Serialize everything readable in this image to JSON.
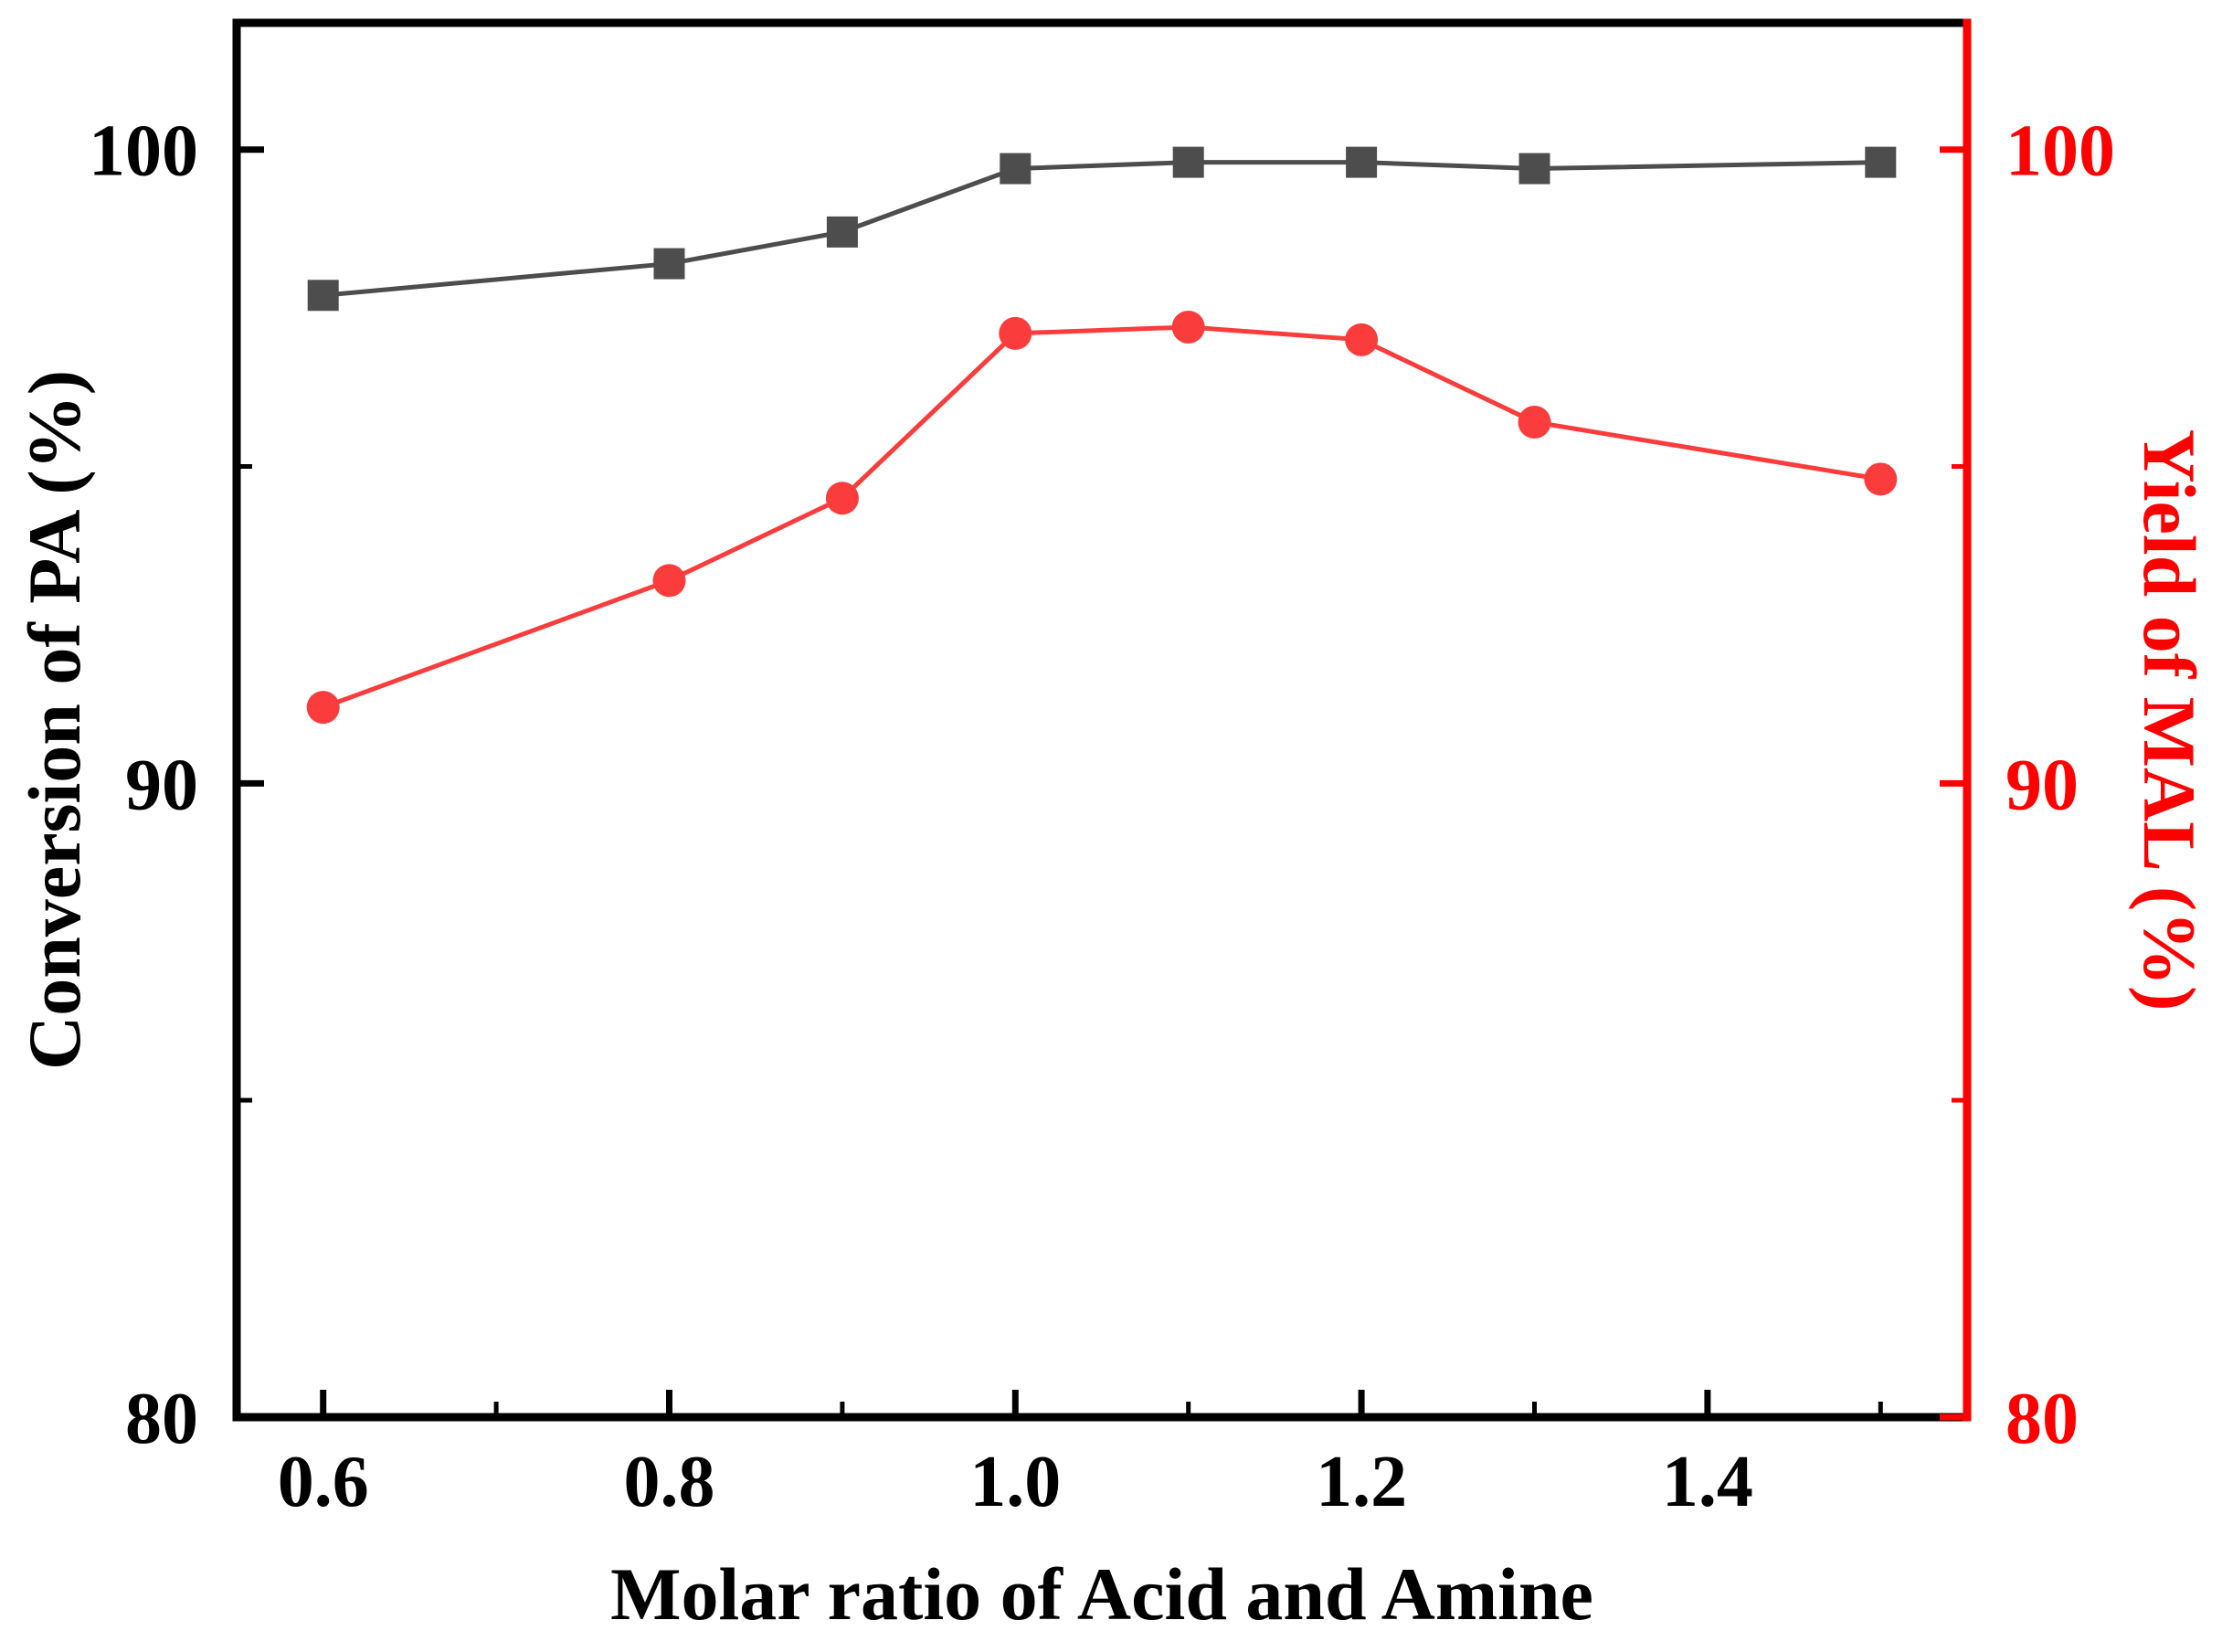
{
  "figure": {
    "background": "#ffffff"
  },
  "chart_data": {
    "type": "line",
    "title": "",
    "xlabel": "Molar ratio of Acid and Amine",
    "ylabel_left": "Conversion of PA (%)",
    "ylabel_right": "Yield of MAL (%)",
    "grid": false,
    "legend": "none",
    "xlim": [
      0.55,
      1.55
    ],
    "ylim_left": [
      80,
      102
    ],
    "ylim_right": [
      80,
      102
    ],
    "x": [
      0.6,
      0.8,
      0.9,
      1.0,
      1.1,
      1.2,
      1.3,
      1.5
    ],
    "series": [
      {
        "id": "conversion-of-pa",
        "name": "Conversion of PA",
        "axis": "left",
        "marker": "square",
        "color": "#4d4d4d",
        "line_width": 5,
        "marker_size": 34,
        "values": [
          97.7,
          98.2,
          98.7,
          99.7,
          99.8,
          99.8,
          99.7,
          99.8
        ]
      },
      {
        "id": "yield-of-mal",
        "name": "Yield of MAL",
        "axis": "right",
        "marker": "circle",
        "color": "#fa3c3c",
        "line_width": 5,
        "marker_size": 36,
        "values": [
          91.2,
          93.2,
          94.5,
          97.1,
          97.2,
          97.0,
          95.7,
          94.8
        ]
      }
    ],
    "x_axis": {
      "major_ticks": [
        0.6,
        0.8,
        1.0,
        1.2,
        1.4
      ],
      "tick_labels": [
        "0.6",
        "0.8",
        "1.0",
        "1.2",
        "1.4"
      ],
      "minor_ticks": [
        0.7,
        0.9,
        1.1,
        1.3,
        1.5
      ],
      "color": "#000000"
    },
    "y_axis_left": {
      "major_ticks": [
        100,
        90,
        80
      ],
      "tick_labels": [
        "100",
        "90",
        "80"
      ],
      "minor_ticks": [
        95,
        85
      ],
      "color": "#000000"
    },
    "y_axis_right": {
      "major_ticks": [
        100,
        90,
        80
      ],
      "tick_labels": [
        "100",
        "90",
        "80"
      ],
      "minor_ticks": [
        95,
        85
      ],
      "color": "#ff0000"
    }
  }
}
